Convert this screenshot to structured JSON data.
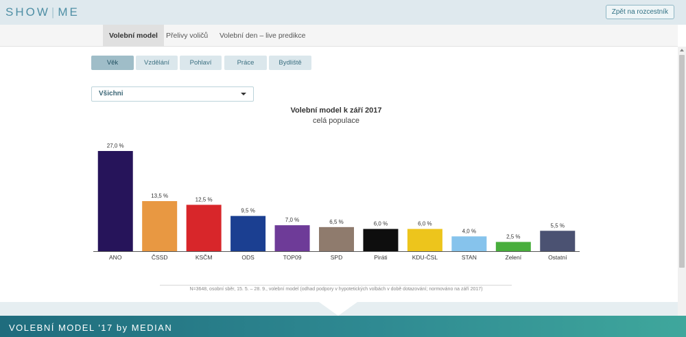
{
  "header": {
    "brand_left": "SHOW",
    "brand_right": "ME",
    "back_button": "Zpět na rozcestník"
  },
  "nav": {
    "tabs": [
      {
        "label": "Volební model",
        "active": true
      },
      {
        "label": "Přelivy voličů",
        "active": false
      },
      {
        "label": "Volební den – live predikce",
        "active": false
      }
    ]
  },
  "filters": {
    "pills": [
      {
        "label": "Věk",
        "active": true
      },
      {
        "label": "Vzdělání",
        "active": false
      },
      {
        "label": "Pohlaví",
        "active": false
      },
      {
        "label": "Práce",
        "active": false
      },
      {
        "label": "Bydliště",
        "active": false
      }
    ],
    "select_value": "Všichni"
  },
  "chart_data": {
    "type": "bar",
    "title": "Volební model k září 2017",
    "subtitle": "celá populace",
    "categories": [
      "ANO",
      "ČSSD",
      "KSČM",
      "ODS",
      "TOP09",
      "SPD",
      "Piráti",
      "KDU-ČSL",
      "STAN",
      "Zelení",
      "Ostatní"
    ],
    "values": [
      27.0,
      13.5,
      12.5,
      9.5,
      7.0,
      6.5,
      6.0,
      6.0,
      4.0,
      2.5,
      5.5
    ],
    "value_labels": [
      "27,0 %",
      "13,5 %",
      "12,5 %",
      "9,5 %",
      "7,0 %",
      "6,5 %",
      "6,0 %",
      "6,0 %",
      "4,0 %",
      "2,5 %",
      "5,5 %"
    ],
    "colors": [
      "#26145a",
      "#e89842",
      "#d8262a",
      "#1b3f91",
      "#6e3b98",
      "#8f7b6d",
      "#0e0e0e",
      "#edc51c",
      "#86c3ec",
      "#48ae3c",
      "#4b5272"
    ],
    "ylim": [
      0,
      30
    ],
    "grid": false,
    "legend": "none"
  },
  "footnote": "N=3648, osobní sběr, 15. 5. – 28. 9., volební model (odhad podpory v hypotetických volbách v době dotazování; normováno na září 2017)",
  "footer": {
    "text": "VOLEBNÍ MODEL '17 by MEDIAN"
  }
}
